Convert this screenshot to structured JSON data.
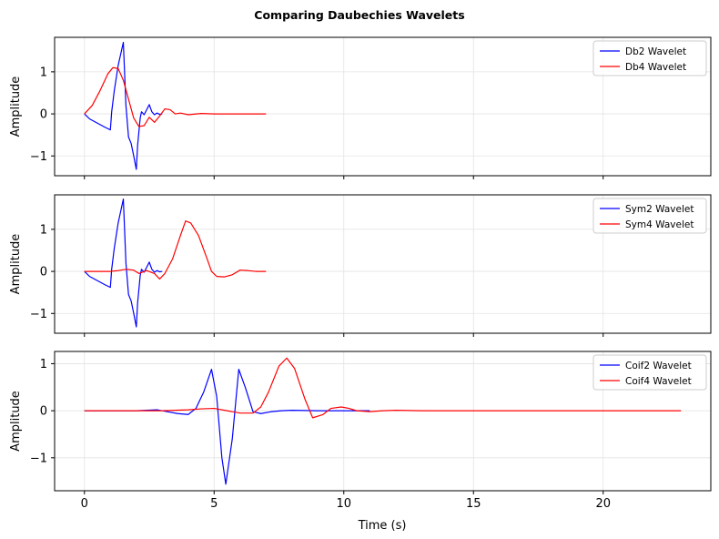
{
  "figure": {
    "title": "Comparing Daubechies Wavelets",
    "xlabel": "Time (s)"
  },
  "colors": {
    "series_a": "#0000ff",
    "series_b": "#ff0000",
    "grid": "#e3e3e3",
    "axis": "#000000"
  },
  "chart_data": [
    {
      "type": "line",
      "ylabel": "Amplitude",
      "xlim": [
        -1.15,
        24.15
      ],
      "ylim": [
        -1.47,
        1.82
      ],
      "xticks": [
        0,
        5,
        10,
        15,
        20
      ],
      "yticks": [
        -1,
        0,
        1
      ],
      "grid": true,
      "legend_position": "top-right",
      "series": [
        {
          "name": "Db2 Wavelet",
          "color": "#0000ff",
          "x": [
            0,
            0.2,
            0.5,
            0.8,
            1.0,
            1.05,
            1.15,
            1.3,
            1.5,
            1.6,
            1.7,
            1.8,
            1.9,
            2.0,
            2.05,
            2.15,
            2.2,
            2.3,
            2.4,
            2.5,
            2.6,
            2.7,
            2.8,
            2.9,
            3.0
          ],
          "y": [
            0,
            -0.12,
            -0.22,
            -0.32,
            -0.38,
            0.05,
            0.55,
            1.15,
            1.7,
            0.2,
            -0.55,
            -0.7,
            -1.0,
            -1.32,
            -0.75,
            -0.1,
            0.05,
            -0.02,
            0.1,
            0.22,
            0.05,
            -0.02,
            0.02,
            -0.01,
            0.0
          ]
        },
        {
          "name": "Db4 Wavelet",
          "color": "#ff0000",
          "x": [
            0,
            0.3,
            0.6,
            0.9,
            1.1,
            1.3,
            1.5,
            1.7,
            1.9,
            2.1,
            2.3,
            2.5,
            2.7,
            2.9,
            3.1,
            3.3,
            3.5,
            3.7,
            4.0,
            4.5,
            5.0,
            5.5,
            6.0,
            6.5,
            7.0
          ],
          "y": [
            0,
            0.2,
            0.55,
            0.95,
            1.1,
            1.08,
            0.8,
            0.35,
            -0.1,
            -0.3,
            -0.28,
            -0.08,
            -0.2,
            -0.05,
            0.12,
            0.1,
            0.0,
            0.02,
            -0.02,
            0.01,
            0.0,
            0.0,
            0.0,
            0.0,
            0.0
          ]
        }
      ]
    },
    {
      "type": "line",
      "ylabel": "Amplitude",
      "xlim": [
        -1.15,
        24.15
      ],
      "ylim": [
        -1.47,
        1.82
      ],
      "xticks": [
        0,
        5,
        10,
        15,
        20
      ],
      "yticks": [
        -1,
        0,
        1
      ],
      "grid": true,
      "legend_position": "top-right",
      "series": [
        {
          "name": "Sym2 Wavelet",
          "color": "#0000ff",
          "x": [
            0,
            0.2,
            0.5,
            0.8,
            1.0,
            1.05,
            1.15,
            1.3,
            1.5,
            1.6,
            1.7,
            1.8,
            1.9,
            2.0,
            2.05,
            2.15,
            2.2,
            2.3,
            2.4,
            2.5,
            2.6,
            2.7,
            2.8,
            2.9,
            3.0
          ],
          "y": [
            0,
            -0.12,
            -0.22,
            -0.32,
            -0.38,
            0.05,
            0.55,
            1.15,
            1.72,
            0.2,
            -0.55,
            -0.7,
            -1.0,
            -1.32,
            -0.75,
            -0.1,
            0.05,
            -0.02,
            0.1,
            0.22,
            0.05,
            -0.02,
            0.02,
            -0.01,
            0.0
          ]
        },
        {
          "name": "Sym4 Wavelet",
          "color": "#ff0000",
          "x": [
            0,
            0.5,
            1.0,
            1.3,
            1.6,
            1.9,
            2.1,
            2.4,
            2.7,
            2.9,
            3.1,
            3.4,
            3.7,
            3.9,
            4.1,
            4.4,
            4.7,
            4.9,
            5.1,
            5.4,
            5.7,
            6.0,
            6.3,
            6.6,
            7.0
          ],
          "y": [
            0,
            0.0,
            0.0,
            0.02,
            0.05,
            0.03,
            -0.05,
            0.02,
            -0.05,
            -0.18,
            -0.05,
            0.3,
            0.85,
            1.2,
            1.15,
            0.85,
            0.35,
            0.0,
            -0.12,
            -0.13,
            -0.08,
            0.03,
            0.02,
            0.0,
            0.0
          ]
        }
      ]
    },
    {
      "type": "line",
      "ylabel": "Amplitude",
      "xlim": [
        -1.15,
        24.15
      ],
      "ylim": [
        -1.7,
        1.26
      ],
      "xticks": [
        0,
        5,
        10,
        15,
        20
      ],
      "yticks": [
        -1,
        0,
        1
      ],
      "grid": true,
      "legend_position": "top-right",
      "series": [
        {
          "name": "Coif2 Wavelet",
          "color": "#0000ff",
          "x": [
            0,
            1,
            2,
            2.8,
            3.2,
            3.6,
            4.0,
            4.3,
            4.6,
            4.9,
            5.1,
            5.3,
            5.45,
            5.7,
            5.95,
            6.2,
            6.5,
            6.8,
            7.2,
            7.6,
            8.0,
            9.0,
            10.0,
            11.0
          ],
          "y": [
            0,
            0,
            0.0,
            0.02,
            -0.02,
            -0.06,
            -0.08,
            0.05,
            0.4,
            0.88,
            0.3,
            -1.0,
            -1.56,
            -0.6,
            0.88,
            0.5,
            -0.02,
            -0.06,
            -0.02,
            0.0,
            0.01,
            0.0,
            0.0,
            0.0
          ]
        },
        {
          "name": "Coif4 Wavelet",
          "color": "#ff0000",
          "x": [
            0,
            2,
            3,
            4,
            4.5,
            5,
            5.5,
            6,
            6.5,
            6.8,
            7.1,
            7.5,
            7.8,
            8.1,
            8.5,
            8.8,
            9.2,
            9.5,
            9.9,
            10.2,
            10.5,
            11,
            11.5,
            12,
            13,
            16,
            20,
            23
          ],
          "y": [
            0,
            0,
            0.0,
            0.02,
            0.04,
            0.05,
            0.0,
            -0.05,
            -0.05,
            0.08,
            0.4,
            0.95,
            1.12,
            0.9,
            0.25,
            -0.15,
            -0.08,
            0.05,
            0.08,
            0.05,
            0.0,
            -0.02,
            0.0,
            0.01,
            0.0,
            0.0,
            0.0,
            0.0
          ]
        }
      ]
    }
  ]
}
